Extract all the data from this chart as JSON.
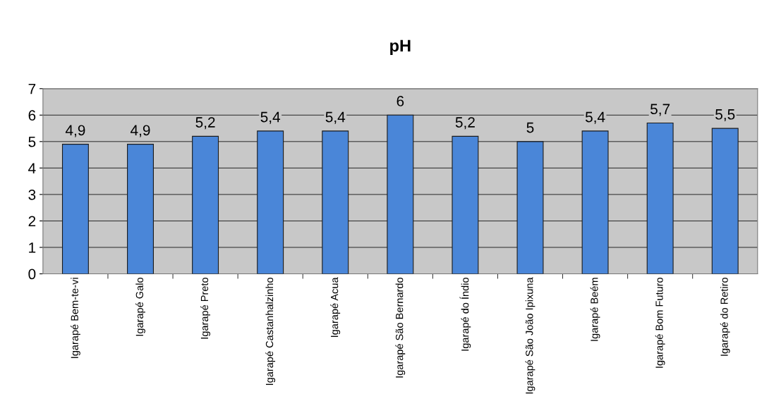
{
  "chart_data": {
    "type": "bar",
    "title": "pH",
    "categories": [
      "Igarapé Bem-te-vi",
      "Igarapé Galo",
      "Igarapé Preto",
      "Igarapé Castanhalzinho",
      "Igarapé Acua",
      "Igarapé São Bernardo",
      "Igarapé do Índio",
      "Igarapé São João Ipixuna",
      "Igarapé Beém",
      "Igarapé Bom Futuro",
      "Igarapé do Retiro"
    ],
    "values": [
      4.9,
      4.9,
      5.2,
      5.4,
      5.4,
      6,
      5.2,
      5,
      5.4,
      5.7,
      5.5
    ],
    "value_labels": [
      "4,9",
      "4,9",
      "5,2",
      "5,4",
      "5,4",
      "6",
      "5,2",
      "5",
      "5,4",
      "5,7",
      "5,5"
    ],
    "color": "#4a86d8",
    "ylim": [
      0,
      7
    ],
    "yticks": [
      0,
      1,
      2,
      3,
      4,
      5,
      6,
      7
    ],
    "grid": "y"
  }
}
